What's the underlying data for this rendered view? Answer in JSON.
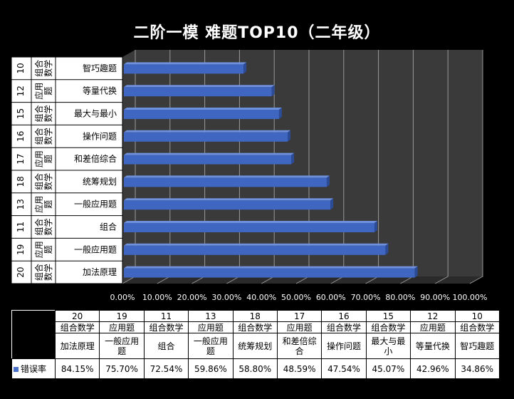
{
  "chart_data": {
    "type": "bar",
    "orientation": "horizontal-3d",
    "title": "二阶一模 难题TOP10（二年级）",
    "xlim": [
      0,
      100
    ],
    "x_ticks": [
      "0.00%",
      "10.00%",
      "20.00%",
      "30.00%",
      "40.00%",
      "50.00%",
      "60.00%",
      "70.00%",
      "80.00%",
      "90.00%",
      "100.00%"
    ],
    "categories": [
      {
        "num": "20",
        "type": "组合数学",
        "name": "加法原理"
      },
      {
        "num": "19",
        "type": "应用题",
        "name": "一般应用题"
      },
      {
        "num": "11",
        "type": "组合数学",
        "name": "组合"
      },
      {
        "num": "13",
        "type": "应用题",
        "name": "一般应用题"
      },
      {
        "num": "18",
        "type": "组合数学",
        "name": "统筹规划"
      },
      {
        "num": "17",
        "type": "应用题",
        "name": "和差倍综合"
      },
      {
        "num": "16",
        "type": "组合数学",
        "name": "操作问题"
      },
      {
        "num": "15",
        "type": "组合数学",
        "name": "最大与最小"
      },
      {
        "num": "12",
        "type": "应用题",
        "name": "等量代换"
      },
      {
        "num": "10",
        "type": "组合数学",
        "name": "智巧趣题"
      }
    ],
    "series": [
      {
        "name": "错误率",
        "values": [
          84.15,
          75.7,
          72.54,
          59.86,
          58.8,
          48.59,
          47.54,
          45.07,
          42.96,
          34.86
        ],
        "labels": [
          "84.15%",
          "75.70%",
          "72.54%",
          "59.86%",
          "58.80%",
          "48.59%",
          "47.54%",
          "45.07%",
          "42.96%",
          "34.86%"
        ]
      }
    ]
  },
  "colors": {
    "bar": "#3f67c2",
    "bar_top": "#6f90dc",
    "bar_end": "#2c4c98",
    "wall": "#3a3a3a",
    "grid": "#9a9a9a",
    "label_panel": "#ffffff"
  }
}
